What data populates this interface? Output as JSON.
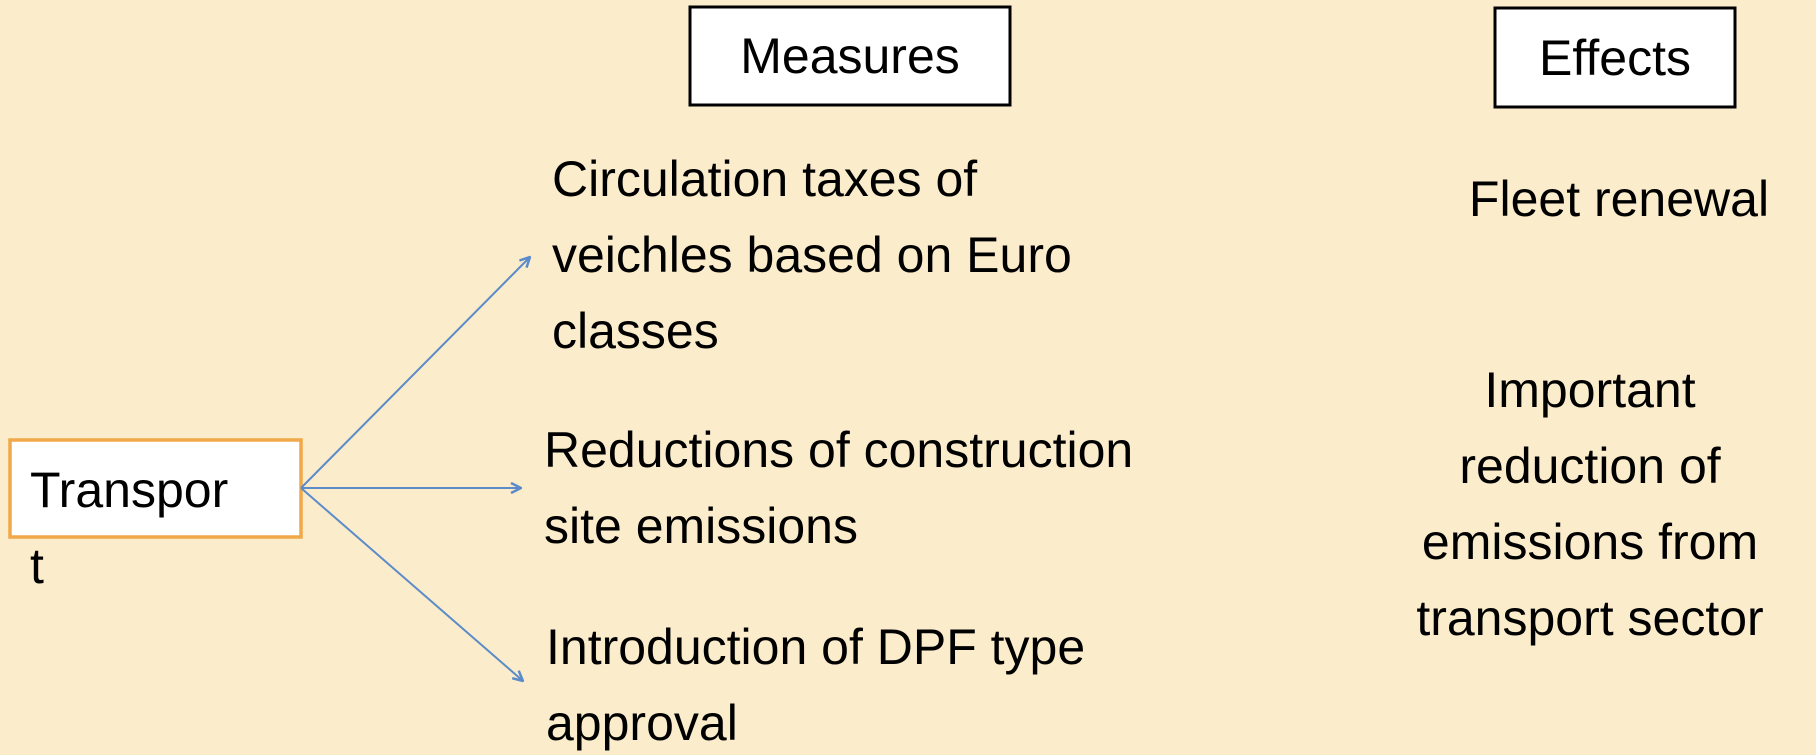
{
  "headers": {
    "measures": "Measures",
    "effects": "Effects"
  },
  "source": {
    "lines": [
      "Transpor",
      "t"
    ]
  },
  "measures": [
    {
      "lines": [
        "Circulation taxes of",
        "veichles based on Euro",
        "classes"
      ]
    },
    {
      "lines": [
        "Reductions of construction",
        "site emissions"
      ]
    },
    {
      "lines": [
        "Introduction of DPF type",
        "approval"
      ]
    }
  ],
  "effects": [
    {
      "lines": [
        "Fleet renewal"
      ]
    },
    {
      "lines": [
        "Important",
        "reduction of",
        "emissions from",
        "transport sector"
      ]
    }
  ]
}
